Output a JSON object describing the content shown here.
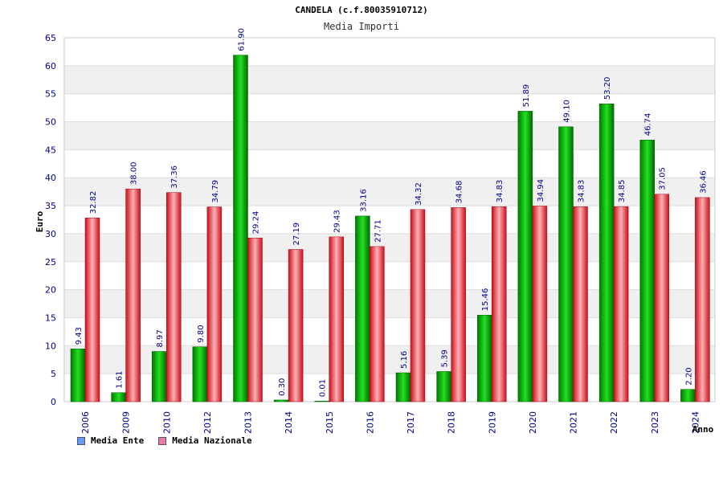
{
  "chart_data": {
    "type": "bar",
    "title": "CANDELA (c.f.80035910712)",
    "subtitle": "Media Importi",
    "xlabel": "Anno",
    "ylabel": "Euro",
    "ylim": [
      0,
      65
    ],
    "yticks": [
      0,
      5,
      10,
      15,
      20,
      25,
      30,
      35,
      40,
      45,
      50,
      55,
      60,
      65
    ],
    "grid": true,
    "legend_position": "bottom-left",
    "categories": [
      "2006",
      "2009",
      "2010",
      "2012",
      "2013",
      "2014",
      "2015",
      "2016",
      "2017",
      "2018",
      "2019",
      "2020",
      "2021",
      "2022",
      "2023",
      "2024"
    ],
    "series": [
      {
        "name": "Media Ente",
        "color": "#00b000",
        "swatch_color": "#6699ff",
        "values": [
          9.43,
          1.61,
          8.97,
          9.8,
          61.9,
          0.3,
          0.01,
          33.16,
          5.16,
          5.39,
          15.46,
          51.89,
          49.1,
          53.2,
          46.74,
          2.2
        ],
        "labels": [
          "9.43",
          "1.61",
          "8.97",
          "9.80",
          "61.90",
          "0.30",
          "0.01",
          "33.16",
          "5.16",
          "5.39",
          "15.46",
          "51.89",
          "49.10",
          "53.20",
          "46.74",
          "2.20"
        ]
      },
      {
        "name": "Media Nazionale",
        "color": "#e8202a",
        "swatch_color": "#e87aa8",
        "values": [
          32.82,
          38.0,
          37.36,
          34.79,
          29.24,
          27.19,
          29.43,
          27.71,
          34.32,
          34.68,
          34.83,
          34.94,
          34.83,
          34.85,
          37.05,
          36.46
        ],
        "labels": [
          "32.82",
          "38.00",
          "37.36",
          "34.79",
          "29.24",
          "27.19",
          "29.43",
          "27.71",
          "34.32",
          "34.68",
          "34.83",
          "34.94",
          "34.83",
          "34.85",
          "37.05",
          "36.46"
        ]
      }
    ]
  }
}
